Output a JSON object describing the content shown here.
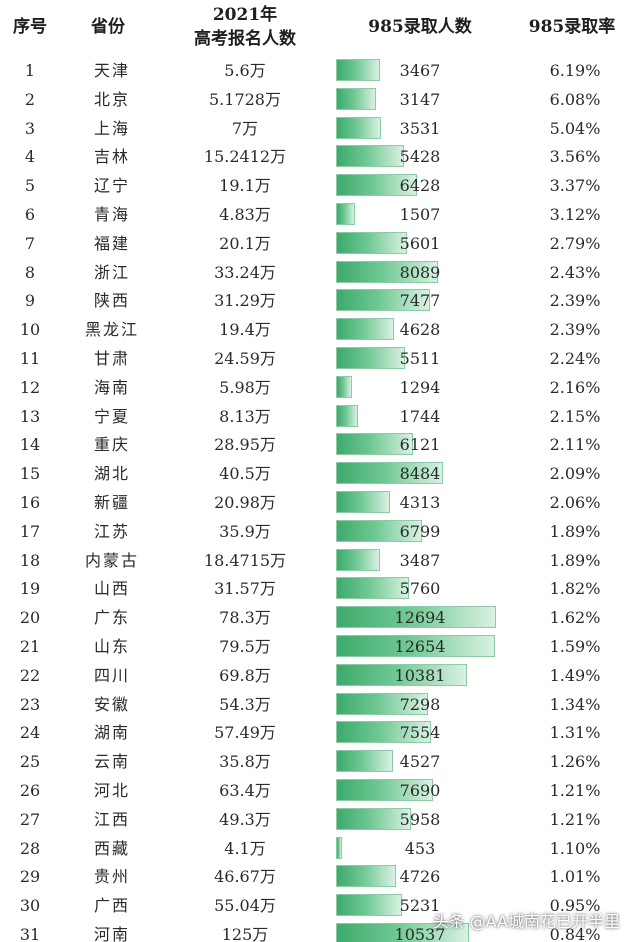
{
  "header": {
    "seq": "序号",
    "province": "省份",
    "pop_line1": "2021年",
    "pop_line2": "高考报名人数",
    "count": "985录取人数",
    "rate": "985录取率"
  },
  "colors": {
    "bar_start": "#3daa6b",
    "bar_end": "#d9f1e2"
  },
  "bar_max": 12694,
  "rows": [
    {
      "seq": "1",
      "province": "天津",
      "pop": "5.6万",
      "count": 3467,
      "rate": "6.19%"
    },
    {
      "seq": "2",
      "province": "北京",
      "pop": "5.1728万",
      "count": 3147,
      "rate": "6.08%"
    },
    {
      "seq": "3",
      "province": "上海",
      "pop": "7万",
      "count": 3531,
      "rate": "5.04%"
    },
    {
      "seq": "4",
      "province": "吉林",
      "pop": "15.2412万",
      "count": 5428,
      "rate": "3.56%"
    },
    {
      "seq": "5",
      "province": "辽宁",
      "pop": "19.1万",
      "count": 6428,
      "rate": "3.37%"
    },
    {
      "seq": "6",
      "province": "青海",
      "pop": "4.83万",
      "count": 1507,
      "rate": "3.12%"
    },
    {
      "seq": "7",
      "province": "福建",
      "pop": "20.1万",
      "count": 5601,
      "rate": "2.79%"
    },
    {
      "seq": "8",
      "province": "浙江",
      "pop": "33.24万",
      "count": 8089,
      "rate": "2.43%"
    },
    {
      "seq": "9",
      "province": "陕西",
      "pop": "31.29万",
      "count": 7477,
      "rate": "2.39%"
    },
    {
      "seq": "10",
      "province": "黑龙江",
      "pop": "19.4万",
      "count": 4628,
      "rate": "2.39%"
    },
    {
      "seq": "11",
      "province": "甘肃",
      "pop": "24.59万",
      "count": 5511,
      "rate": "2.24%"
    },
    {
      "seq": "12",
      "province": "海南",
      "pop": "5.98万",
      "count": 1294,
      "rate": "2.16%"
    },
    {
      "seq": "13",
      "province": "宁夏",
      "pop": "8.13万",
      "count": 1744,
      "rate": "2.15%"
    },
    {
      "seq": "14",
      "province": "重庆",
      "pop": "28.95万",
      "count": 6121,
      "rate": "2.11%"
    },
    {
      "seq": "15",
      "province": "湖北",
      "pop": "40.5万",
      "count": 8484,
      "rate": "2.09%"
    },
    {
      "seq": "16",
      "province": "新疆",
      "pop": "20.98万",
      "count": 4313,
      "rate": "2.06%"
    },
    {
      "seq": "17",
      "province": "江苏",
      "pop": "35.9万",
      "count": 6799,
      "rate": "1.89%"
    },
    {
      "seq": "18",
      "province": "内蒙古",
      "pop": "18.4715万",
      "count": 3487,
      "rate": "1.89%"
    },
    {
      "seq": "19",
      "province": "山西",
      "pop": "31.57万",
      "count": 5760,
      "rate": "1.82%"
    },
    {
      "seq": "20",
      "province": "广东",
      "pop": "78.3万",
      "count": 12694,
      "rate": "1.62%"
    },
    {
      "seq": "21",
      "province": "山东",
      "pop": "79.5万",
      "count": 12654,
      "rate": "1.59%"
    },
    {
      "seq": "22",
      "province": "四川",
      "pop": "69.8万",
      "count": 10381,
      "rate": "1.49%"
    },
    {
      "seq": "23",
      "province": "安徽",
      "pop": "54.3万",
      "count": 7298,
      "rate": "1.34%"
    },
    {
      "seq": "24",
      "province": "湖南",
      "pop": "57.49万",
      "count": 7554,
      "rate": "1.31%"
    },
    {
      "seq": "25",
      "province": "云南",
      "pop": "35.8万",
      "count": 4527,
      "rate": "1.26%"
    },
    {
      "seq": "26",
      "province": "河北",
      "pop": "63.4万",
      "count": 7690,
      "rate": "1.21%"
    },
    {
      "seq": "27",
      "province": "江西",
      "pop": "49.3万",
      "count": 5958,
      "rate": "1.21%"
    },
    {
      "seq": "28",
      "province": "西藏",
      "pop": "4.1万",
      "count": 453,
      "rate": "1.10%"
    },
    {
      "seq": "29",
      "province": "贵州",
      "pop": "46.67万",
      "count": 4726,
      "rate": "1.01%"
    },
    {
      "seq": "30",
      "province": "广西",
      "pop": "55.04万",
      "count": 5231,
      "rate": "0.95%"
    },
    {
      "seq": "31",
      "province": "河南",
      "pop": "125万",
      "count": 10537,
      "rate": "0.84%"
    }
  ],
  "watermark": "头条 @AA城南花已开半里"
}
